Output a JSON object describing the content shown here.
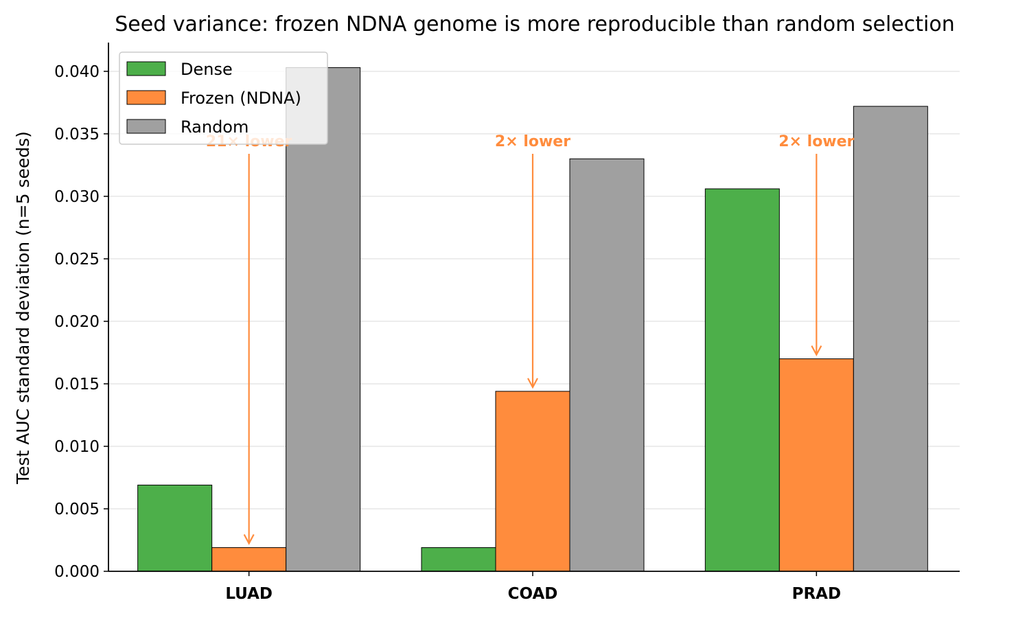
{
  "chart_data": {
    "type": "bar",
    "title": "Seed variance: frozen NDNA genome is more reproducible than random selection",
    "xlabel": "",
    "ylabel": "Test AUC standard deviation (n=5 seeds)",
    "categories": [
      "LUAD",
      "COAD",
      "PRAD"
    ],
    "series": [
      {
        "name": "Dense",
        "color": "#4daf4a",
        "values": [
          0.0069,
          0.0019,
          0.0306
        ]
      },
      {
        "name": "Frozen (NDNA)",
        "color": "#ff8c3d",
        "values": [
          0.0019,
          0.0144,
          0.017
        ]
      },
      {
        "name": "Random",
        "color": "#a0a0a0",
        "values": [
          0.0403,
          0.033,
          0.0372
        ]
      }
    ],
    "ylim": [
      0,
      0.0423
    ],
    "yticks": [
      "0.000",
      "0.005",
      "0.010",
      "0.015",
      "0.020",
      "0.025",
      "0.030",
      "0.035",
      "0.040"
    ],
    "grid": "y",
    "legend_position": "top-left",
    "annotations": [
      {
        "category": "LUAD",
        "text": "21× lower",
        "color": "#ff8c3d"
      },
      {
        "category": "COAD",
        "text": "2× lower",
        "color": "#ff8c3d"
      },
      {
        "category": "PRAD",
        "text": "2× lower",
        "color": "#ff8c3d"
      }
    ]
  }
}
